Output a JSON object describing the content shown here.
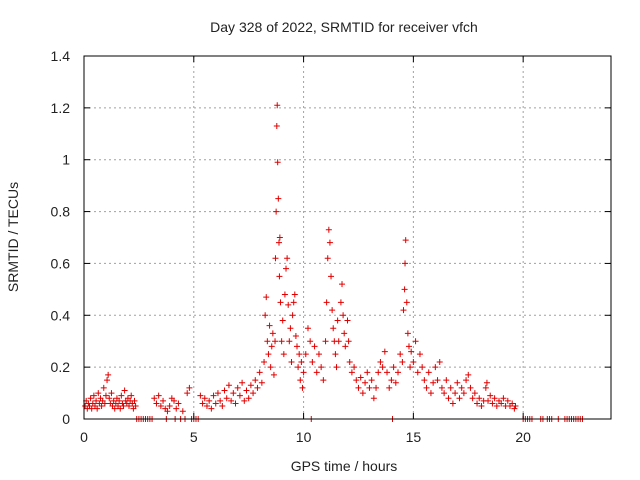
{
  "chart_data": {
    "type": "scatter",
    "title": "Day 328 of 2022, SRMTID for receiver vfch",
    "xlabel": "GPS time / hours",
    "ylabel": "SRMTID / TECUs",
    "xlim": [
      0,
      24
    ],
    "ylim": [
      0,
      1.4
    ],
    "xticks": [
      0,
      5,
      10,
      15,
      20
    ],
    "xtick_labels": [
      "0",
      "5",
      "10",
      "15",
      "20"
    ],
    "yticks": [
      0,
      0.2,
      0.4,
      0.6,
      0.8,
      1.0,
      1.2,
      1.4
    ],
    "ytick_labels": [
      "0",
      "0.2",
      "0.4",
      "0.6",
      "0.8",
      "1",
      "1.2",
      "1.4"
    ],
    "grid": true,
    "marker": "+",
    "color": "#e00000",
    "series": [
      {
        "name": "SRMTID",
        "points": [
          [
            0.05,
            0.05
          ],
          [
            0.1,
            0.07
          ],
          [
            0.15,
            0.04
          ],
          [
            0.2,
            0.06
          ],
          [
            0.25,
            0.05
          ],
          [
            0.3,
            0.08
          ],
          [
            0.35,
            0.04
          ],
          [
            0.4,
            0.06
          ],
          [
            0.45,
            0.09
          ],
          [
            0.5,
            0.05
          ],
          [
            0.55,
            0.07
          ],
          [
            0.6,
            0.04
          ],
          [
            0.65,
            0.1
          ],
          [
            0.7,
            0.06
          ],
          [
            0.75,
            0.08
          ],
          [
            0.8,
            0.05
          ],
          [
            0.85,
            0.07
          ],
          [
            0.9,
            0.12
          ],
          [
            0.95,
            0.06
          ],
          [
            1.0,
            0.09
          ],
          [
            1.05,
            0.15
          ],
          [
            1.1,
            0.17
          ],
          [
            1.15,
            0.08
          ],
          [
            1.2,
            0.06
          ],
          [
            1.25,
            0.1
          ],
          [
            1.3,
            0.05
          ],
          [
            1.35,
            0.07
          ],
          [
            1.4,
            0.04
          ],
          [
            1.45,
            0.06
          ],
          [
            1.5,
            0.08
          ],
          [
            1.55,
            0.05
          ],
          [
            1.6,
            0.07
          ],
          [
            1.65,
            0.04
          ],
          [
            1.7,
            0.09
          ],
          [
            1.75,
            0.06
          ],
          [
            1.8,
            0.05
          ],
          [
            1.85,
            0.11
          ],
          [
            1.9,
            0.07
          ],
          [
            1.95,
            0.06
          ],
          [
            2.0,
            0.08
          ],
          [
            2.05,
            0.05
          ],
          [
            2.1,
            0.07
          ],
          [
            2.15,
            0.09
          ],
          [
            2.2,
            0.06
          ],
          [
            2.25,
            0.04
          ],
          [
            2.3,
            0.07
          ],
          [
            2.35,
            0.05
          ],
          [
            2.4,
            0.0
          ],
          [
            2.5,
            0.0
          ],
          [
            2.6,
            0.0
          ],
          [
            2.7,
            0.0
          ],
          [
            2.8,
            0.0
          ],
          [
            2.9,
            0.0
          ],
          [
            3.0,
            0.0
          ],
          [
            3.1,
            0.0
          ],
          [
            3.2,
            0.08
          ],
          [
            3.3,
            0.06
          ],
          [
            3.4,
            0.09
          ],
          [
            3.5,
            0.05
          ],
          [
            3.6,
            0.07
          ],
          [
            3.7,
            0.04
          ],
          [
            3.75,
            0.0
          ],
          [
            3.8,
            0.03
          ],
          [
            3.9,
            0.05
          ],
          [
            4.0,
            0.08
          ],
          [
            4.1,
            0.07
          ],
          [
            4.15,
            0.0
          ],
          [
            4.2,
            0.04
          ],
          [
            4.3,
            0.06
          ],
          [
            4.4,
            0.0
          ],
          [
            4.5,
            0.03
          ],
          [
            4.6,
            0.0
          ],
          [
            4.7,
            0.1
          ],
          [
            4.8,
            0.12
          ],
          [
            4.9,
            0.0
          ],
          [
            5.0,
            0.0
          ],
          [
            5.1,
            0.0
          ],
          [
            5.2,
            0.0
          ],
          [
            5.3,
            0.09
          ],
          [
            5.4,
            0.06
          ],
          [
            5.5,
            0.08
          ],
          [
            5.6,
            0.05
          ],
          [
            5.7,
            0.07
          ],
          [
            5.8,
            0.04
          ],
          [
            5.9,
            0.09
          ],
          [
            6.0,
            0.06
          ],
          [
            6.1,
            0.1
          ],
          [
            6.2,
            0.07
          ],
          [
            6.3,
            0.05
          ],
          [
            6.4,
            0.11
          ],
          [
            6.5,
            0.08
          ],
          [
            6.6,
            0.13
          ],
          [
            6.7,
            0.07
          ],
          [
            6.8,
            0.1
          ],
          [
            6.9,
            0.06
          ],
          [
            7.0,
            0.12
          ],
          [
            7.1,
            0.09
          ],
          [
            7.2,
            0.14
          ],
          [
            7.3,
            0.07
          ],
          [
            7.4,
            0.11
          ],
          [
            7.5,
            0.08
          ],
          [
            7.6,
            0.13
          ],
          [
            7.7,
            0.1
          ],
          [
            7.8,
            0.15
          ],
          [
            7.9,
            0.12
          ],
          [
            8.0,
            0.18
          ],
          [
            8.1,
            0.14
          ],
          [
            8.2,
            0.22
          ],
          [
            8.25,
            0.4
          ],
          [
            8.3,
            0.47
          ],
          [
            8.35,
            0.3
          ],
          [
            8.4,
            0.25
          ],
          [
            8.45,
            0.36
          ],
          [
            8.5,
            0.2
          ],
          [
            8.55,
            0.28
          ],
          [
            8.6,
            0.33
          ],
          [
            8.65,
            0.17
          ],
          [
            8.7,
            0.3
          ],
          [
            8.72,
            0.62
          ],
          [
            8.75,
            0.8
          ],
          [
            8.78,
            1.13
          ],
          [
            8.8,
            1.21
          ],
          [
            8.82,
            0.99
          ],
          [
            8.85,
            0.85
          ],
          [
            8.88,
            0.68
          ],
          [
            8.9,
            0.55
          ],
          [
            8.92,
            0.7
          ],
          [
            8.95,
            0.45
          ],
          [
            9.0,
            0.3
          ],
          [
            9.05,
            0.38
          ],
          [
            9.1,
            0.25
          ],
          [
            9.15,
            0.48
          ],
          [
            9.2,
            0.58
          ],
          [
            9.25,
            0.62
          ],
          [
            9.3,
            0.44
          ],
          [
            9.35,
            0.3
          ],
          [
            9.4,
            0.35
          ],
          [
            9.45,
            0.22
          ],
          [
            9.5,
            0.4
          ],
          [
            9.55,
            0.45
          ],
          [
            9.6,
            0.48
          ],
          [
            9.65,
            0.32
          ],
          [
            9.7,
            0.28
          ],
          [
            9.75,
            0.2
          ],
          [
            9.8,
            0.25
          ],
          [
            9.85,
            0.15
          ],
          [
            9.9,
            0.22
          ],
          [
            9.95,
            0.12
          ],
          [
            10.0,
            0.18
          ],
          [
            10.1,
            0.25
          ],
          [
            10.2,
            0.35
          ],
          [
            10.3,
            0.3
          ],
          [
            10.35,
            0.0
          ],
          [
            10.4,
            0.22
          ],
          [
            10.5,
            0.28
          ],
          [
            10.6,
            0.18
          ],
          [
            10.7,
            0.25
          ],
          [
            10.8,
            0.2
          ],
          [
            10.9,
            0.15
          ],
          [
            11.0,
            0.3
          ],
          [
            11.05,
            0.45
          ],
          [
            11.1,
            0.62
          ],
          [
            11.15,
            0.73
          ],
          [
            11.2,
            0.68
          ],
          [
            11.25,
            0.55
          ],
          [
            11.3,
            0.42
          ],
          [
            11.35,
            0.35
          ],
          [
            11.4,
            0.3
          ],
          [
            11.45,
            0.25
          ],
          [
            11.5,
            0.2
          ],
          [
            11.55,
            0.38
          ],
          [
            11.6,
            0.3
          ],
          [
            11.7,
            0.45
          ],
          [
            11.75,
            0.52
          ],
          [
            11.8,
            0.4
          ],
          [
            11.85,
            0.33
          ],
          [
            11.9,
            0.28
          ],
          [
            12.0,
            0.38
          ],
          [
            12.05,
            0.3
          ],
          [
            12.1,
            0.22
          ],
          [
            12.2,
            0.18
          ],
          [
            12.3,
            0.2
          ],
          [
            12.4,
            0.15
          ],
          [
            12.5,
            0.12
          ],
          [
            12.6,
            0.16
          ],
          [
            12.7,
            0.1
          ],
          [
            12.8,
            0.14
          ],
          [
            12.9,
            0.18
          ],
          [
            13.0,
            0.12
          ],
          [
            13.1,
            0.15
          ],
          [
            13.2,
            0.08
          ],
          [
            13.3,
            0.12
          ],
          [
            13.4,
            0.18
          ],
          [
            13.5,
            0.22
          ],
          [
            13.6,
            0.2
          ],
          [
            13.7,
            0.26
          ],
          [
            13.8,
            0.18
          ],
          [
            13.9,
            0.12
          ],
          [
            14.0,
            0.15
          ],
          [
            14.05,
            0.0
          ],
          [
            14.1,
            0.2
          ],
          [
            14.2,
            0.14
          ],
          [
            14.3,
            0.18
          ],
          [
            14.4,
            0.25
          ],
          [
            14.5,
            0.22
          ],
          [
            14.55,
            0.42
          ],
          [
            14.6,
            0.5
          ],
          [
            14.62,
            0.6
          ],
          [
            14.65,
            0.69
          ],
          [
            14.7,
            0.45
          ],
          [
            14.75,
            0.33
          ],
          [
            14.8,
            0.28
          ],
          [
            14.85,
            0.2
          ],
          [
            14.9,
            0.26
          ],
          [
            15.0,
            0.22
          ],
          [
            15.1,
            0.3
          ],
          [
            15.2,
            0.18
          ],
          [
            15.3,
            0.25
          ],
          [
            15.4,
            0.2
          ],
          [
            15.5,
            0.15
          ],
          [
            15.6,
            0.12
          ],
          [
            15.7,
            0.18
          ],
          [
            15.8,
            0.1
          ],
          [
            15.9,
            0.14
          ],
          [
            16.0,
            0.2
          ],
          [
            16.1,
            0.15
          ],
          [
            16.2,
            0.22
          ],
          [
            16.3,
            0.12
          ],
          [
            16.4,
            0.1
          ],
          [
            16.5,
            0.15
          ],
          [
            16.6,
            0.08
          ],
          [
            16.7,
            0.12
          ],
          [
            16.8,
            0.06
          ],
          [
            16.9,
            0.1
          ],
          [
            17.0,
            0.14
          ],
          [
            17.1,
            0.08
          ],
          [
            17.2,
            0.12
          ],
          [
            17.3,
            0.1
          ],
          [
            17.4,
            0.15
          ],
          [
            17.5,
            0.17
          ],
          [
            17.6,
            0.12
          ],
          [
            17.7,
            0.08
          ],
          [
            17.8,
            0.1
          ],
          [
            17.9,
            0.06
          ],
          [
            18.0,
            0.08
          ],
          [
            18.1,
            0.05
          ],
          [
            18.2,
            0.07
          ],
          [
            18.3,
            0.12
          ],
          [
            18.35,
            0.14
          ],
          [
            18.4,
            0.07
          ],
          [
            18.5,
            0.09
          ],
          [
            18.6,
            0.06
          ],
          [
            18.7,
            0.08
          ],
          [
            18.8,
            0.05
          ],
          [
            18.9,
            0.07
          ],
          [
            19.0,
            0.06
          ],
          [
            19.1,
            0.08
          ],
          [
            19.2,
            0.05
          ],
          [
            19.3,
            0.07
          ],
          [
            19.4,
            0.05
          ],
          [
            19.5,
            0.06
          ],
          [
            19.6,
            0.04
          ],
          [
            19.65,
            0.05
          ],
          [
            20.0,
            0.0
          ],
          [
            20.1,
            0.0
          ],
          [
            20.2,
            0.0
          ],
          [
            20.3,
            0.0
          ],
          [
            20.4,
            0.0
          ],
          [
            20.8,
            0.0
          ],
          [
            20.9,
            0.0
          ],
          [
            21.1,
            0.0
          ],
          [
            21.2,
            0.0
          ],
          [
            21.3,
            0.0
          ],
          [
            21.6,
            0.0
          ],
          [
            21.9,
            0.0
          ],
          [
            22.0,
            0.0
          ],
          [
            22.1,
            0.0
          ],
          [
            22.2,
            0.0
          ],
          [
            22.3,
            0.0
          ],
          [
            22.4,
            0.0
          ],
          [
            22.5,
            0.0
          ],
          [
            22.6,
            0.0
          ],
          [
            22.7,
            0.0
          ]
        ]
      }
    ]
  }
}
